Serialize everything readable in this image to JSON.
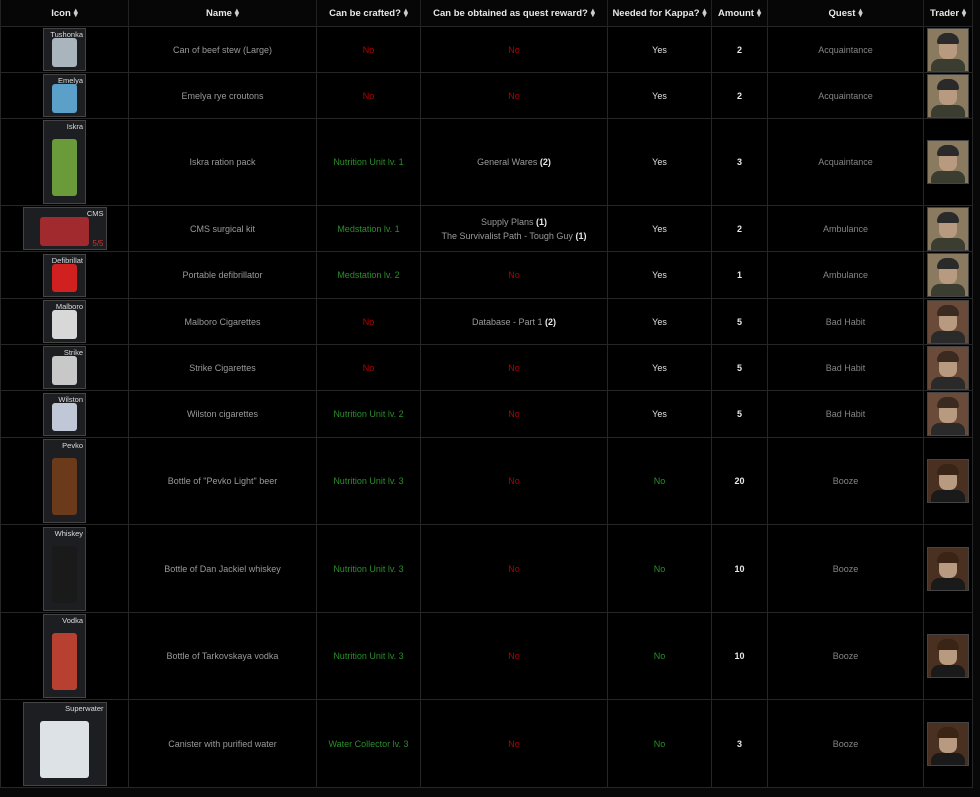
{
  "headers": [
    "Icon",
    "Name",
    "Can be crafted?",
    "Can be obtained as quest reward?",
    "Needed for Kappa?",
    "Amount",
    "Quest",
    "Trader"
  ],
  "sort_icon": "sort-arrows-icon",
  "colors": {
    "no": "#b40000",
    "craft": "#2a8f2a",
    "yes": "#e0e0e0"
  },
  "traders": {
    "jaeger": {
      "name": "Jaeger",
      "bg": "#8a7a60",
      "hat": "#2a2a2a",
      "body": "#3a3d30"
    },
    "therapist": {
      "name": "Therapist",
      "bg": "#6a4a38",
      "hat": "#3a2a20",
      "body": "#2a2a2a"
    },
    "ragman": {
      "name": "Ragman",
      "bg": "#4a3020",
      "hat": "#3a2415",
      "body": "#1a1a1a"
    }
  },
  "rows": [
    {
      "icon_label": "Tushonka",
      "icon_color": "#a9b4bc",
      "name": "Can of beef stew (Large)",
      "crafted": "No",
      "reward": [],
      "kappa": "Yes",
      "amount": "2",
      "quest": "Acquaintance",
      "trader": "jaeger"
    },
    {
      "icon_label": "Emelya",
      "icon_color": "#5aa0c8",
      "name": "Emelya rye croutons",
      "crafted": "No",
      "reward": [],
      "kappa": "Yes",
      "amount": "2",
      "quest": "Acquaintance",
      "trader": "jaeger"
    },
    {
      "icon_label": "Iskra",
      "icon_color": "#6a9a3a",
      "name": "Iskra ration pack",
      "crafted": "Nutrition Unit lv. 1",
      "reward": [
        {
          "q": "General Wares",
          "n": "(2)"
        }
      ],
      "kappa": "Yes",
      "amount": "3",
      "quest": "Acquaintance",
      "trader": "jaeger"
    },
    {
      "icon_label": "CMS",
      "icon_count": "5/5",
      "icon_color": "#a02a2e",
      "name": "CMS surgical kit",
      "crafted": "Medstation lv. 1",
      "reward": [
        {
          "q": "Supply Plans",
          "n": "(1)"
        },
        {
          "q": "The Survivalist Path - Tough Guy",
          "n": "(1)"
        }
      ],
      "kappa": "Yes",
      "amount": "2",
      "quest": "Ambulance",
      "trader": "jaeger"
    },
    {
      "icon_label": "Defibrillat",
      "icon_color": "#d02020",
      "name": "Portable defibrillator",
      "crafted": "Medstation lv. 2",
      "reward": [],
      "kappa": "Yes",
      "amount": "1",
      "quest": "Ambulance",
      "trader": "jaeger"
    },
    {
      "icon_label": "Malboro",
      "icon_color": "#d8d8d8",
      "name": "Malboro Cigarettes",
      "crafted": "No",
      "reward": [
        {
          "q": "Database - Part 1",
          "n": "(2)"
        }
      ],
      "kappa": "Yes",
      "amount": "5",
      "quest": "Bad Habit",
      "trader": "therapist"
    },
    {
      "icon_label": "Strike",
      "icon_color": "#c8c8c8",
      "name": "Strike Cigarettes",
      "crafted": "No",
      "reward": [],
      "kappa": "Yes",
      "amount": "5",
      "quest": "Bad Habit",
      "trader": "therapist"
    },
    {
      "icon_label": "Wilston",
      "icon_color": "#c0c8d8",
      "name": "Wilston cigarettes",
      "crafted": "Nutrition Unit lv. 2",
      "reward": [],
      "kappa": "Yes",
      "amount": "5",
      "quest": "Bad Habit",
      "trader": "therapist"
    },
    {
      "icon_label": "Pevko",
      "icon_color": "#6a3a1a",
      "name": "Bottle of \"Pevko Light\" beer",
      "crafted": "Nutrition Unit lv. 3",
      "reward": [],
      "kappa": "No",
      "amount": "20",
      "quest": "Booze",
      "trader": "ragman"
    },
    {
      "icon_label": "Whiskey",
      "icon_color": "#1a1a1a",
      "name": "Bottle of Dan Jackiel whiskey",
      "crafted": "Nutrition Unit lv. 3",
      "reward": [],
      "kappa": "No",
      "amount": "10",
      "quest": "Booze",
      "trader": "ragman"
    },
    {
      "icon_label": "Vodka",
      "icon_color": "#b84030",
      "name": "Bottle of Tarkovskaya vodka",
      "crafted": "Nutrition Unit lv. 3",
      "reward": [],
      "kappa": "No",
      "amount": "10",
      "quest": "Booze",
      "trader": "ragman"
    },
    {
      "icon_label": "Superwater",
      "icon_color": "#dde2e6",
      "name": "Canister with purified water",
      "crafted": "Water Collector lv. 3",
      "reward": [],
      "kappa": "No",
      "amount": "3",
      "quest": "Booze",
      "trader": "ragman"
    }
  ],
  "no_label": "No"
}
